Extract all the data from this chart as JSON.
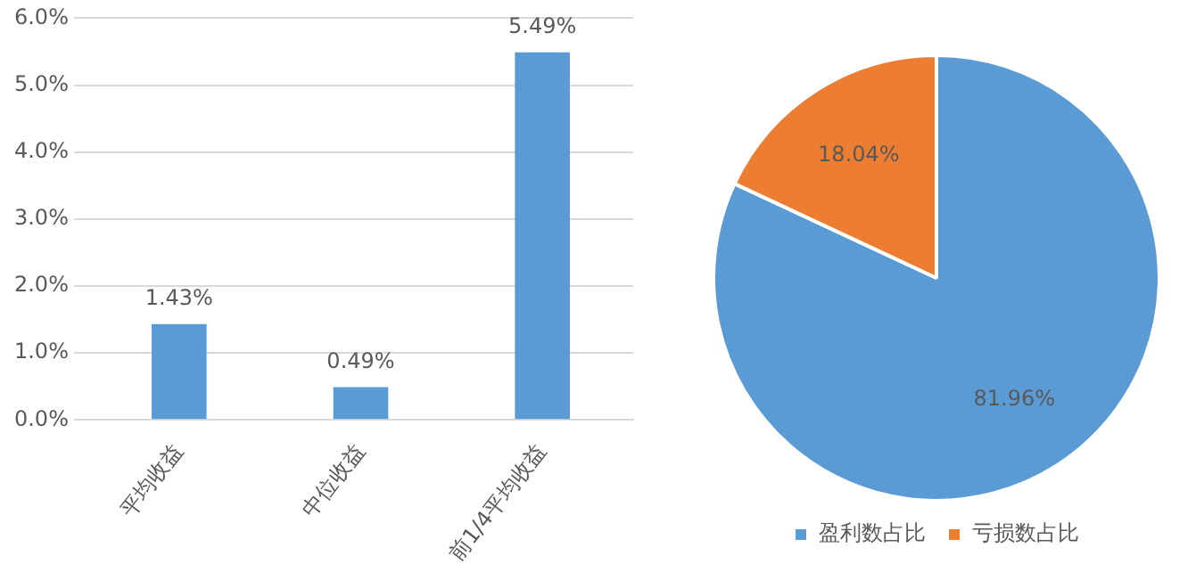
{
  "chart_data": [
    {
      "type": "bar",
      "categories": [
        "平均收益",
        "中位收益",
        "前1/4平均收益"
      ],
      "values": [
        1.43,
        0.49,
        5.49
      ],
      "color": "#5b9bd5",
      "value_labels": [
        "1.43%",
        "0.49%",
        "5.49%"
      ],
      "ylim": [
        0,
        6
      ],
      "yticks": [
        {
          "value": 0,
          "label": "0.0%"
        },
        {
          "value": 1,
          "label": "1.0%"
        },
        {
          "value": 2,
          "label": "2.0%"
        },
        {
          "value": 3,
          "label": "3.0%"
        },
        {
          "value": 4,
          "label": "4.0%"
        },
        {
          "value": 5,
          "label": "5.0%"
        },
        {
          "value": 6,
          "label": "6.0%"
        }
      ],
      "grid": "y",
      "legend": false
    },
    {
      "type": "pie",
      "categories": [
        "盈利数占比",
        "亏损数占比"
      ],
      "values": [
        81.96,
        18.04
      ],
      "colors": [
        "#5b9bd5",
        "#ed7d31"
      ],
      "value_labels": [
        "81.96%",
        "18.04%"
      ],
      "legend": "bottom"
    }
  ]
}
